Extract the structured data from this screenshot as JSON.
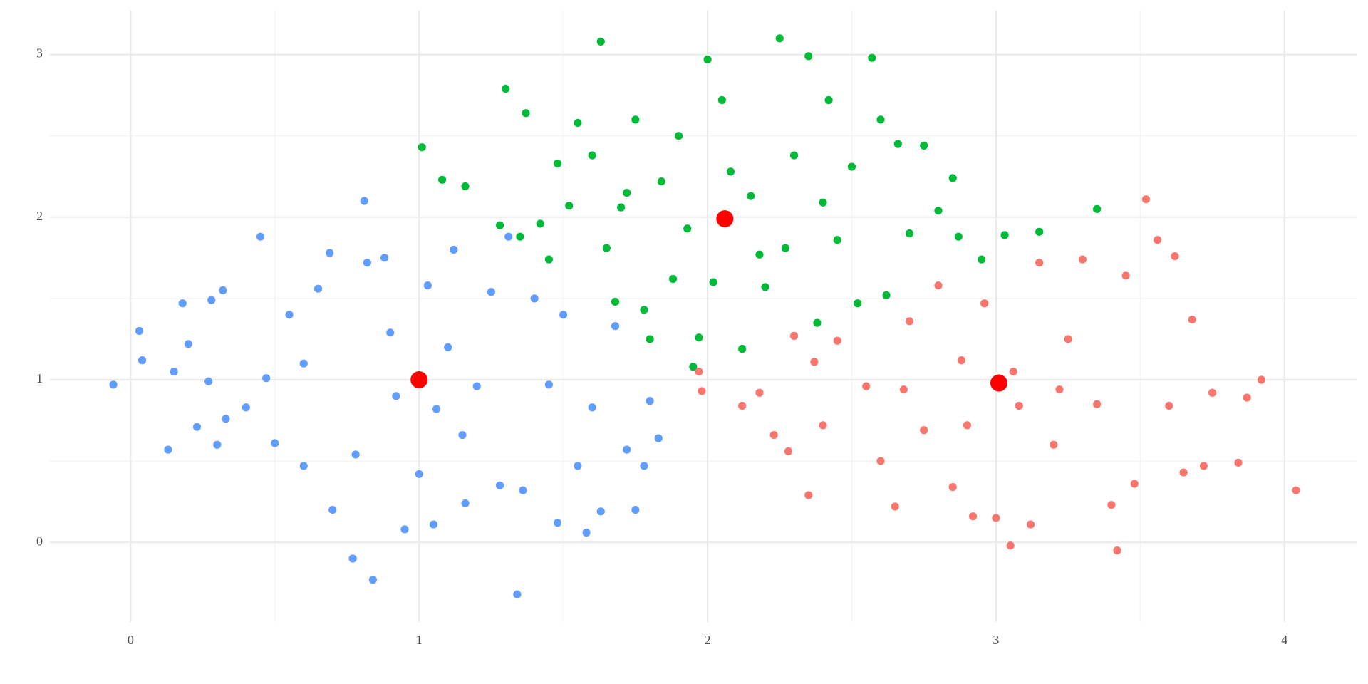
{
  "chart_data": {
    "type": "scatter",
    "xlim": [
      -0.28,
      4.25
    ],
    "ylim": [
      -0.49,
      3.27
    ],
    "xticks": [
      0,
      1,
      2,
      3,
      4
    ],
    "yticks": [
      0,
      1,
      2,
      3
    ],
    "xminorticks": [
      0.5,
      1.5,
      2.5,
      3.5
    ],
    "yminorticks": [
      0.5,
      1.5,
      2.5
    ],
    "grid": true,
    "series": [
      {
        "color": "#619CFF",
        "x": [
          -0.06,
          0.03,
          0.04,
          0.13,
          0.15,
          0.18,
          0.2,
          0.23,
          0.27,
          0.28,
          0.3,
          0.32,
          0.33,
          0.45,
          0.47,
          0.5,
          0.55,
          0.6,
          0.65,
          0.69,
          0.7,
          0.77,
          0.78,
          0.81,
          0.82,
          0.84,
          0.88,
          0.9,
          0.95,
          1.0,
          1.03,
          1.05,
          1.1,
          1.12,
          1.16,
          1.2,
          1.25,
          1.28,
          1.31,
          1.34,
          1.36,
          1.4,
          1.45,
          1.48,
          1.5,
          1.55,
          1.58,
          1.6,
          1.63,
          1.68,
          1.72,
          1.75,
          1.78,
          1.8,
          1.83,
          0.92,
          1.06,
          0.6,
          0.4,
          1.15
        ],
        "values": [
          0.97,
          1.3,
          1.12,
          0.57,
          1.05,
          1.47,
          1.22,
          0.71,
          0.99,
          1.49,
          0.6,
          1.55,
          0.76,
          1.88,
          1.01,
          0.61,
          1.4,
          0.47,
          1.56,
          1.78,
          0.2,
          -0.1,
          0.54,
          2.1,
          1.72,
          -0.23,
          1.75,
          1.29,
          0.08,
          0.42,
          1.58,
          0.11,
          1.2,
          1.8,
          0.24,
          0.96,
          1.54,
          0.35,
          1.88,
          -0.32,
          0.32,
          1.5,
          0.97,
          0.12,
          1.4,
          0.47,
          0.06,
          0.83,
          0.19,
          1.33,
          0.57,
          0.2,
          0.47,
          0.87,
          0.64,
          0.9,
          0.82,
          1.1,
          0.83,
          0.66
        ]
      },
      {
        "color": "#00BA38",
        "x": [
          1.01,
          1.08,
          1.16,
          1.28,
          1.3,
          1.35,
          1.37,
          1.42,
          1.45,
          1.48,
          1.52,
          1.55,
          1.6,
          1.63,
          1.65,
          1.68,
          1.72,
          1.75,
          1.78,
          1.8,
          1.84,
          1.88,
          1.9,
          1.95,
          1.97,
          2.0,
          2.02,
          2.05,
          2.08,
          2.12,
          2.15,
          2.2,
          2.25,
          2.27,
          2.3,
          2.35,
          2.38,
          2.4,
          2.45,
          2.5,
          2.52,
          2.57,
          2.6,
          2.62,
          2.66,
          2.7,
          2.75,
          2.8,
          2.85,
          2.87,
          2.95,
          3.03,
          3.15,
          3.35,
          1.93,
          2.18,
          1.7,
          2.42
        ],
        "values": [
          2.43,
          2.23,
          2.19,
          1.95,
          2.79,
          1.88,
          2.64,
          1.96,
          1.74,
          2.33,
          2.07,
          2.58,
          2.38,
          3.08,
          1.81,
          1.48,
          2.15,
          2.6,
          1.43,
          1.25,
          2.22,
          1.62,
          2.5,
          1.08,
          1.26,
          2.97,
          1.6,
          2.72,
          2.28,
          1.19,
          2.13,
          1.57,
          3.1,
          1.81,
          2.38,
          2.99,
          1.35,
          2.09,
          1.86,
          2.31,
          1.47,
          2.98,
          2.6,
          1.52,
          2.45,
          1.9,
          2.44,
          2.04,
          2.24,
          1.88,
          1.74,
          1.89,
          1.91,
          2.05,
          1.93,
          1.77,
          2.06,
          2.72
        ]
      },
      {
        "color": "#F8766D",
        "x": [
          1.97,
          1.98,
          2.12,
          2.18,
          2.23,
          2.28,
          2.3,
          2.35,
          2.37,
          2.4,
          2.45,
          2.55,
          2.6,
          2.65,
          2.7,
          2.75,
          2.8,
          2.85,
          2.88,
          2.92,
          2.96,
          3.0,
          3.05,
          3.08,
          3.12,
          3.15,
          3.2,
          3.25,
          3.3,
          3.35,
          3.4,
          3.42,
          3.45,
          3.48,
          3.52,
          3.56,
          3.6,
          3.62,
          3.65,
          3.68,
          3.72,
          3.75,
          3.84,
          3.87,
          3.92,
          4.04,
          3.06,
          2.9,
          3.22,
          2.68
        ],
        "values": [
          1.05,
          0.93,
          0.84,
          0.92,
          0.66,
          0.56,
          1.27,
          0.29,
          1.11,
          0.72,
          1.24,
          0.96,
          0.5,
          0.22,
          1.36,
          0.69,
          1.58,
          0.34,
          1.12,
          0.16,
          1.47,
          0.15,
          -0.02,
          0.84,
          0.11,
          1.72,
          0.6,
          1.25,
          1.74,
          0.85,
          0.23,
          -0.05,
          1.64,
          0.36,
          2.11,
          1.86,
          0.84,
          1.76,
          0.43,
          1.37,
          0.47,
          0.92,
          0.49,
          0.89,
          1.0,
          0.32,
          1.05,
          0.72,
          0.94,
          0.94
        ]
      },
      {
        "color": "#FF0000",
        "x": [
          1.0,
          2.06,
          3.01
        ],
        "values": [
          1.0,
          1.99,
          0.98
        ]
      }
    ]
  }
}
